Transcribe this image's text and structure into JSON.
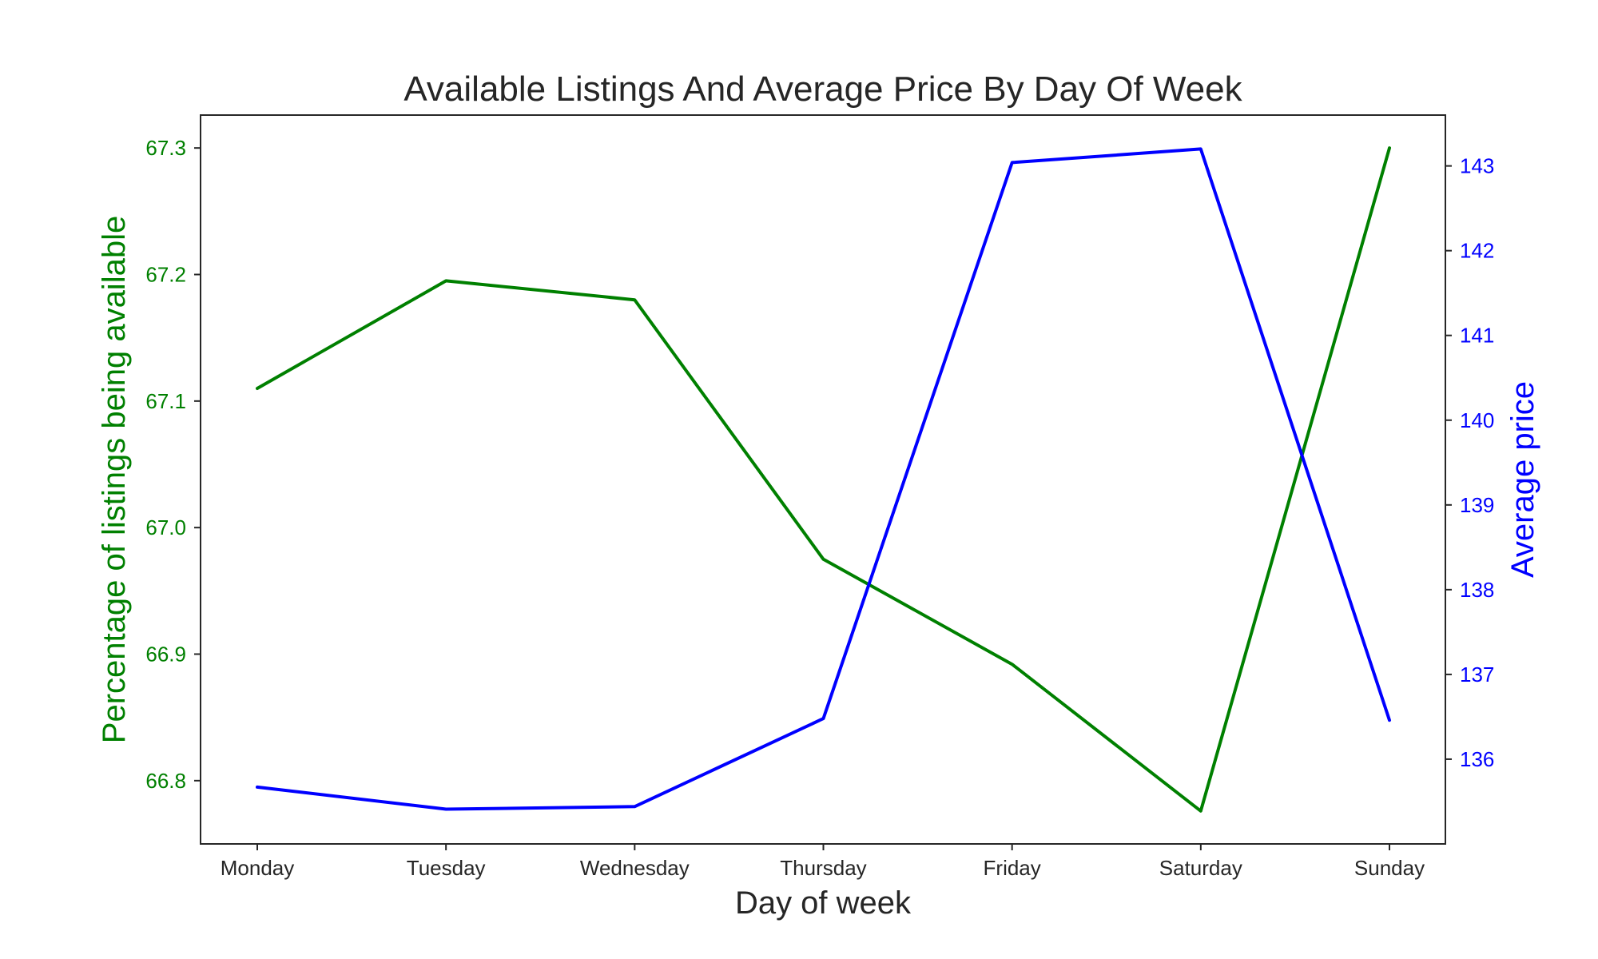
{
  "chart_data": {
    "type": "line",
    "title": "Available Listings And Average Price By Day Of Week",
    "xlabel": "Day of week",
    "categories": [
      "Monday",
      "Tuesday",
      "Wednesday",
      "Thursday",
      "Friday",
      "Saturday",
      "Sunday"
    ],
    "y_left": {
      "label": "Percentage of listings being available",
      "color": "#008000",
      "range": [
        66.75,
        67.326
      ],
      "ticks": [
        "66.8",
        "66.9",
        "67.0",
        "67.1",
        "67.2",
        "67.3"
      ]
    },
    "y_right": {
      "label": "Average price",
      "color": "#0000ff",
      "range": [
        135.0,
        143.6
      ],
      "ticks": [
        "136",
        "137",
        "138",
        "139",
        "140",
        "141",
        "142",
        "143"
      ]
    },
    "series": [
      {
        "axis": "left",
        "color": "#008000",
        "values": [
          67.11,
          67.195,
          67.18,
          66.975,
          66.892,
          66.776,
          67.3
        ]
      },
      {
        "axis": "right",
        "color": "#0000ff",
        "values": [
          135.67,
          135.41,
          135.44,
          136.48,
          143.04,
          143.2,
          136.46
        ]
      }
    ],
    "grid": false,
    "axis_text_color": "#262626"
  }
}
